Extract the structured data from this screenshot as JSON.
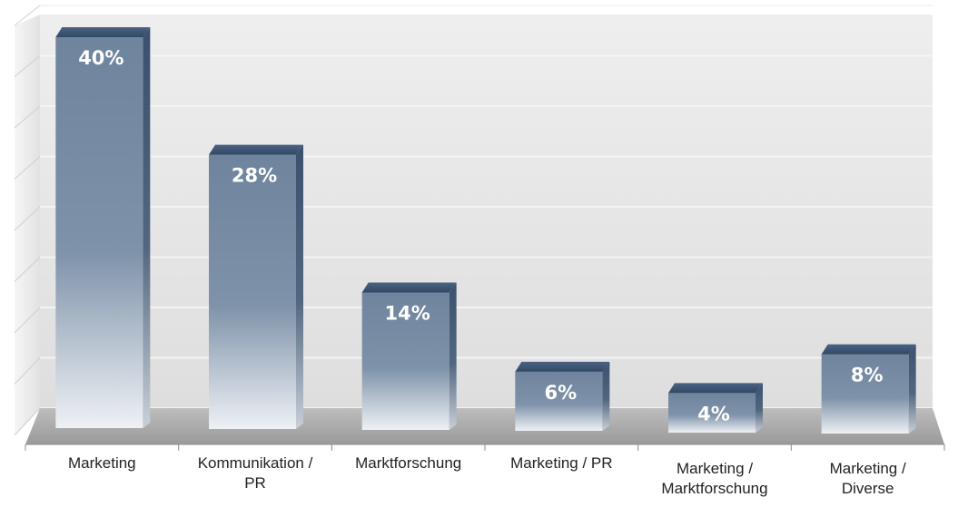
{
  "chart_data": {
    "type": "bar",
    "categories": [
      [
        "Marketing"
      ],
      [
        "Kommunikation /",
        "PR"
      ],
      [
        "Marktforschung"
      ],
      [
        "Marketing / PR"
      ],
      [
        "Marketing /",
        "Marktforschung"
      ],
      [
        "Marketing /",
        "Diverse"
      ]
    ],
    "values": [
      40,
      28,
      14,
      6,
      4,
      8
    ],
    "data_labels": [
      "40%",
      "28%",
      "14%",
      "6%",
      "4%",
      "8%"
    ],
    "unit": "%",
    "ylim": [
      0,
      40
    ],
    "grid": true,
    "legend": "none",
    "title": "",
    "xlabel": "",
    "ylabel": "",
    "colors": {
      "bar_top": "#3f5878",
      "bar_mid": "#7a8ea6",
      "bar_fade": "#e6eaf0",
      "wall": "#e6e6e6",
      "floor": "#a8a8a8",
      "gridline": "#f4f4f4"
    }
  }
}
